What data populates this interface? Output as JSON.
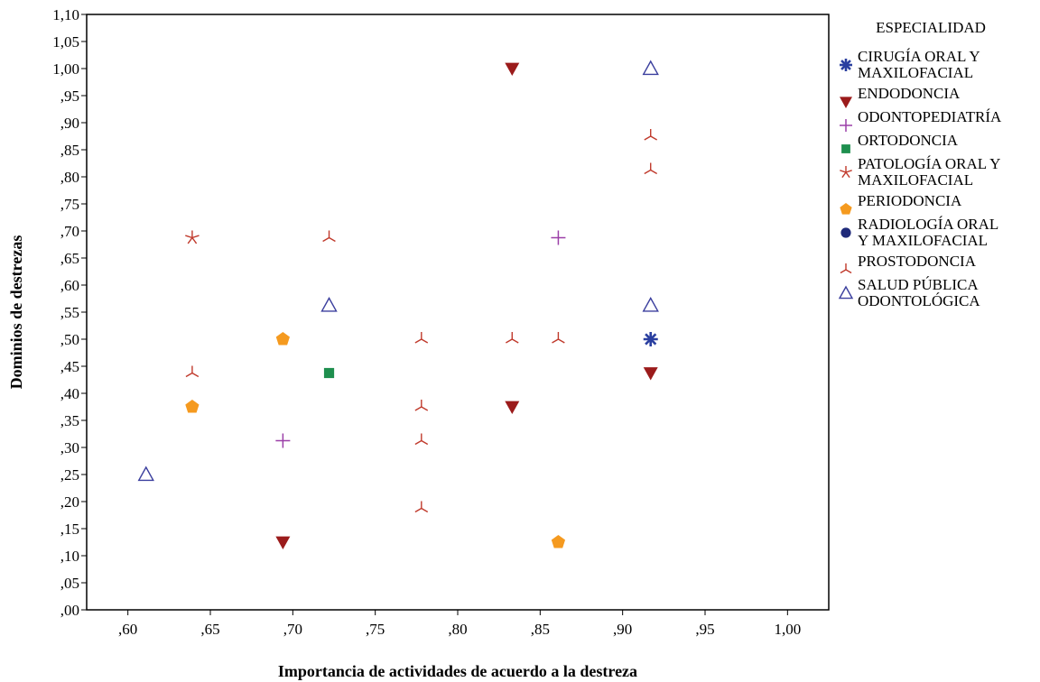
{
  "chart_data": {
    "type": "scatter",
    "xlabel": "Importancia de actividades de acuerdo a la destreza",
    "ylabel": "Dominios de destrezas",
    "xlim": [
      0.575,
      1.025
    ],
    "ylim": [
      0.0,
      1.1
    ],
    "x_ticks": [
      ",60",
      ",65",
      ",70",
      ",75",
      ",80",
      ",85",
      ",90",
      ",95",
      "1,00"
    ],
    "x_tick_values": [
      0.6,
      0.65,
      0.7,
      0.75,
      0.8,
      0.85,
      0.9,
      0.95,
      1.0
    ],
    "y_ticks": [
      ",00",
      ",05",
      ",10",
      ",15",
      ",20",
      ",25",
      ",30",
      ",35",
      ",40",
      ",45",
      ",50",
      ",55",
      ",60",
      ",65",
      ",70",
      ",75",
      ",80",
      ",85",
      ",90",
      ",95",
      "1,00",
      "1,05",
      "1,10"
    ],
    "y_tick_values": [
      0.0,
      0.05,
      0.1,
      0.15,
      0.2,
      0.25,
      0.3,
      0.35,
      0.4,
      0.45,
      0.5,
      0.55,
      0.6,
      0.65,
      0.7,
      0.75,
      0.8,
      0.85,
      0.9,
      0.95,
      1.0,
      1.05,
      1.1
    ],
    "grid": false,
    "legend_position": "right",
    "legend_title": "ESPECIALIDAD",
    "series": [
      {
        "name": [
          "CIRUGÍA ORAL Y",
          "MAXILOFACIAL"
        ],
        "marker": "asterisk",
        "color": "#2a3fa0",
        "points": [
          [
            0.917,
            0.5
          ]
        ]
      },
      {
        "name": [
          "ENDODONCIA"
        ],
        "marker": "triangle-down",
        "color": "#9b1b1b",
        "points": [
          [
            0.833,
            1.0
          ],
          [
            0.833,
            0.375
          ],
          [
            0.694,
            0.125
          ],
          [
            0.917,
            0.4375
          ]
        ]
      },
      {
        "name": [
          "ODONTOPEDIATRÍA"
        ],
        "marker": "plus",
        "color": "#9b3fa8",
        "points": [
          [
            0.861,
            0.6875
          ],
          [
            0.694,
            0.3125
          ]
        ]
      },
      {
        "name": [
          "ORTODONCIA"
        ],
        "marker": "square",
        "color": "#1e8f4e",
        "points": [
          [
            0.722,
            0.4375
          ]
        ]
      },
      {
        "name": [
          "PATOLOGÍA ORAL Y",
          "MAXILOFACIAL"
        ],
        "marker": "star",
        "color": "#c0392b",
        "points": [
          [
            0.639,
            0.6875
          ]
        ]
      },
      {
        "name": [
          "PERIODONCIA"
        ],
        "marker": "pentagon",
        "color": "#f59a1f",
        "points": [
          [
            0.694,
            0.5
          ],
          [
            0.639,
            0.375
          ],
          [
            0.861,
            0.125
          ]
        ]
      },
      {
        "name": [
          "RADIOLOGÍA ORAL",
          "Y MAXILOFACIAL"
        ],
        "marker": "circle",
        "color": "#1f2a7a",
        "points": []
      },
      {
        "name": [
          "PROSTODONCIA"
        ],
        "marker": "tripod",
        "color": "#c0392b",
        "points": [
          [
            0.917,
            0.875
          ],
          [
            0.917,
            0.8125
          ],
          [
            0.722,
            0.6875
          ],
          [
            0.639,
            0.4375
          ],
          [
            0.778,
            0.5
          ],
          [
            0.833,
            0.5
          ],
          [
            0.861,
            0.5
          ],
          [
            0.778,
            0.375
          ],
          [
            0.778,
            0.3125
          ],
          [
            0.778,
            0.1875
          ]
        ]
      },
      {
        "name": [
          "SALUD PÚBLICA",
          "ODONTOLÓGICA"
        ],
        "marker": "triangle-up",
        "color": "#3b3f9e",
        "points": [
          [
            0.917,
            1.0
          ],
          [
            0.722,
            0.5625
          ],
          [
            0.917,
            0.5625
          ],
          [
            0.611,
            0.25
          ]
        ]
      }
    ]
  }
}
